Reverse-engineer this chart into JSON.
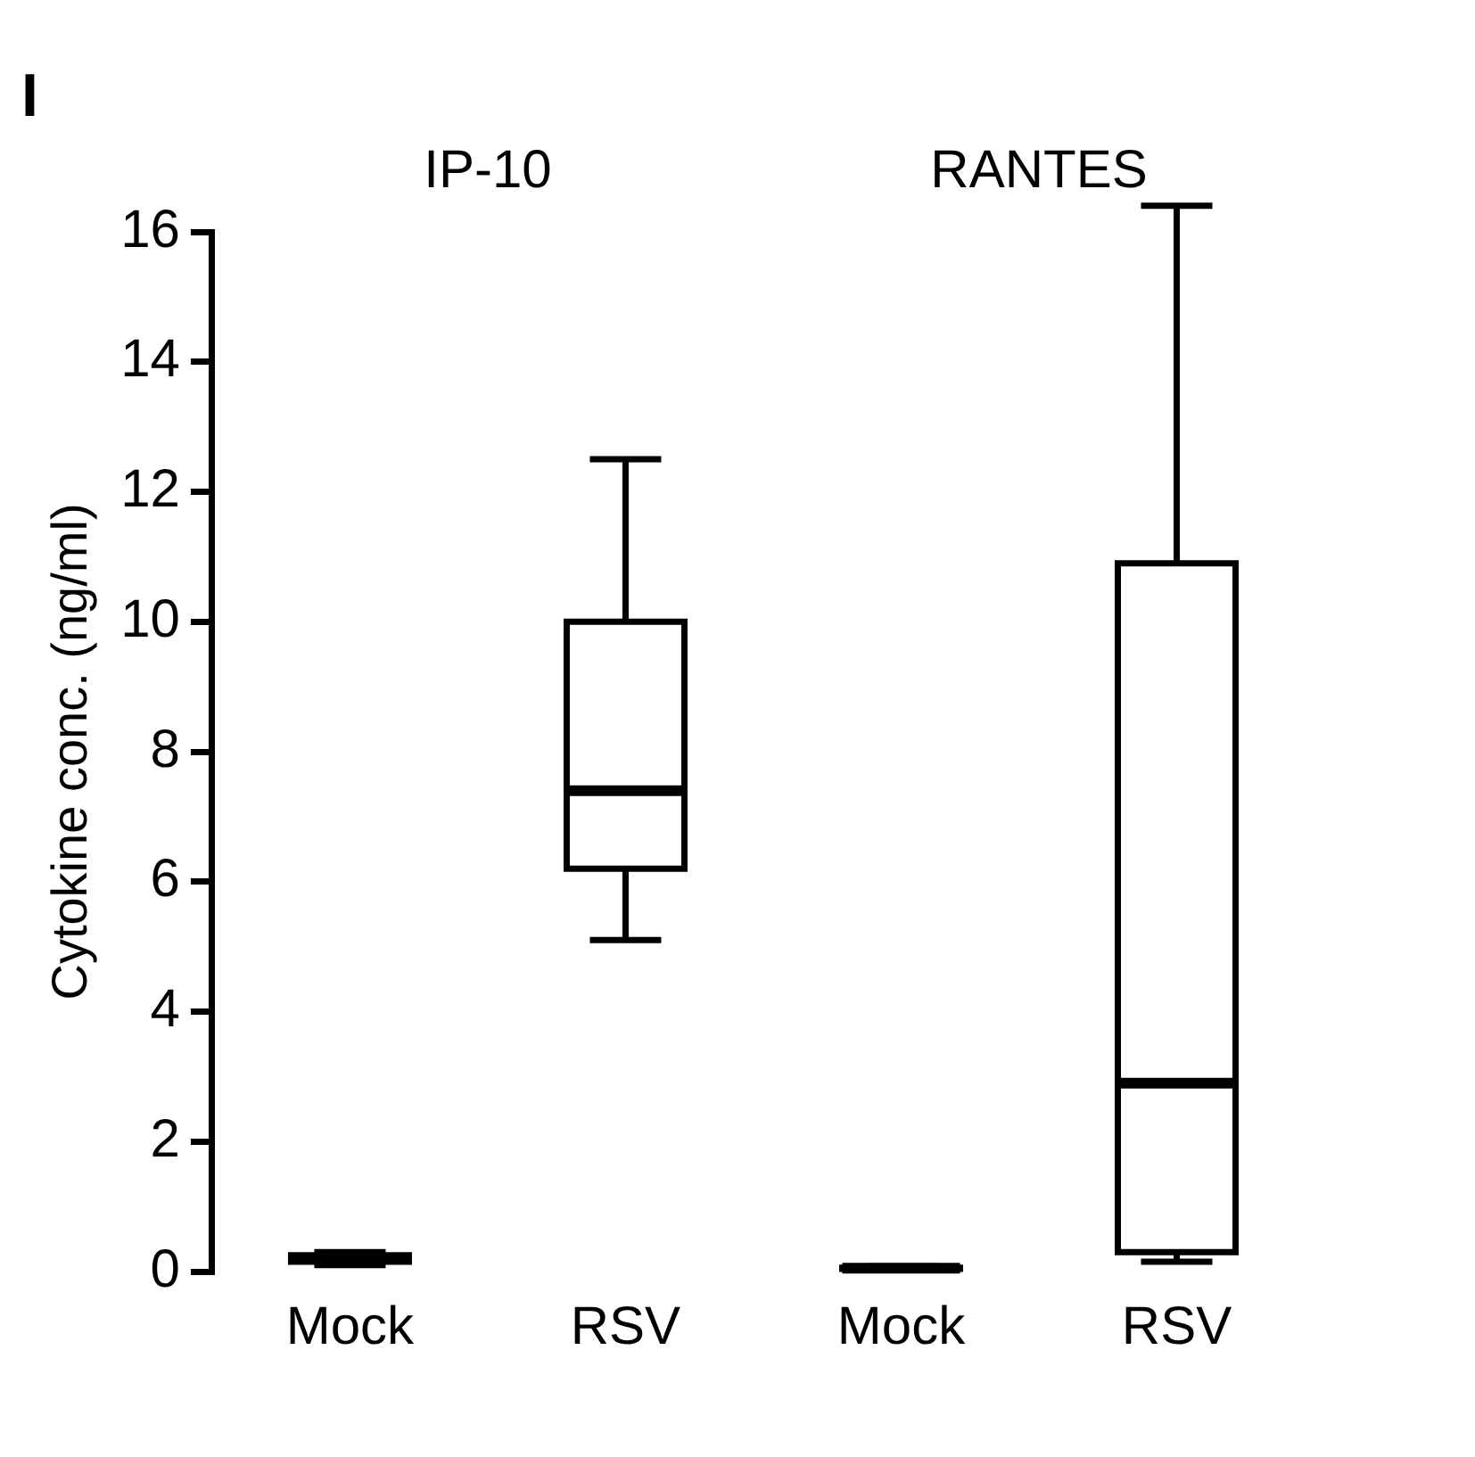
{
  "chart_data": {
    "type": "box",
    "ylabel": "Cytokine conc. (ng/ml)",
    "categories": [
      "Mock",
      "RSV",
      "Mock",
      "RSV"
    ],
    "boxes": [
      {
        "low": 0.1,
        "q1": 0.15,
        "median": 0.2,
        "q3": 0.25,
        "high": 0.3
      },
      {
        "low": 5.1,
        "q1": 6.2,
        "median": 7.4,
        "q3": 10,
        "high": 12.5
      },
      {
        "low": 0.02,
        "q1": 0.04,
        "median": 0.05,
        "q3": 0.06,
        "high": 0.08
      },
      {
        "low": 0.15,
        "q1": 0.3,
        "median": 2.9,
        "q3": 10.9,
        "high": 16.4
      }
    ],
    "color": "#000000",
    "ylim": [
      0,
      16
    ],
    "yticks": [
      0,
      2,
      4,
      6,
      8,
      10,
      12,
      14,
      16
    ],
    "grid": false,
    "legend": false,
    "annotations": [
      "I",
      "IP-10",
      "RANTES"
    ]
  }
}
